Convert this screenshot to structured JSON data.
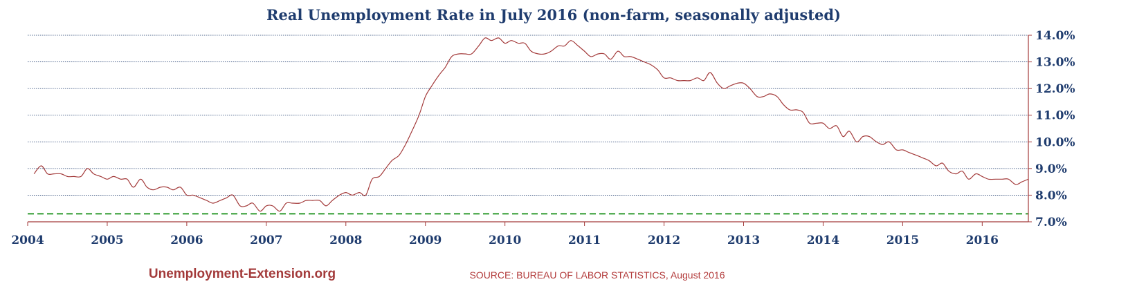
{
  "chart_data": {
    "type": "line",
    "title": "Real Unemployment Rate in July 2016 (non-farm, seasonally adjusted)",
    "xlabel": "",
    "ylabel": "",
    "ylim": [
      7.0,
      14.0
    ],
    "xlim": [
      2004,
      2016.58
    ],
    "y_ticks": [
      "7.0%",
      "8.0%",
      "9.0%",
      "10.0%",
      "11.0%",
      "12.0%",
      "13.0%",
      "14.0%"
    ],
    "y_axis_position": "right",
    "x_ticks": [
      "2004",
      "2005",
      "2006",
      "2007",
      "2008",
      "2009",
      "2010",
      "2011",
      "2012",
      "2013",
      "2014",
      "2015",
      "2016"
    ],
    "grid": "horizontal dotted",
    "colors": {
      "series": "#a33a3a",
      "reference": "#2e9a2e",
      "text": "#1f3c6e",
      "grid": "#1f3c6e"
    },
    "series": [
      {
        "x": [
          2004.08,
          2004.17,
          2004.25,
          2004.33,
          2004.42,
          2004.5,
          2004.58,
          2004.67,
          2004.75,
          2004.83,
          2004.92,
          2005.0,
          2005.08,
          2005.17,
          2005.25,
          2005.33,
          2005.42,
          2005.5,
          2005.58,
          2005.67,
          2005.75,
          2005.83,
          2005.92,
          2006.0,
          2006.08,
          2006.17,
          2006.25,
          2006.33,
          2006.42,
          2006.5,
          2006.58,
          2006.67,
          2006.75,
          2006.83,
          2006.92,
          2007.0,
          2007.08,
          2007.17,
          2007.25,
          2007.33,
          2007.42,
          2007.5,
          2007.58,
          2007.67,
          2007.75,
          2007.83,
          2007.92,
          2008.0,
          2008.08,
          2008.17,
          2008.25,
          2008.33,
          2008.42,
          2008.5,
          2008.58,
          2008.67,
          2008.75,
          2008.83,
          2008.92,
          2009.0,
          2009.08,
          2009.17,
          2009.25,
          2009.33,
          2009.42,
          2009.5,
          2009.58,
          2009.67,
          2009.75,
          2009.83,
          2009.92,
          2010.0,
          2010.08,
          2010.17,
          2010.25,
          2010.33,
          2010.42,
          2010.5,
          2010.58,
          2010.67,
          2010.75,
          2010.83,
          2010.92,
          2011.0,
          2011.08,
          2011.17,
          2011.25,
          2011.33,
          2011.42,
          2011.5,
          2011.58,
          2011.67,
          2011.75,
          2011.83,
          2011.92,
          2012.0,
          2012.08,
          2012.17,
          2012.25,
          2012.33,
          2012.42,
          2012.5,
          2012.58,
          2012.67,
          2012.75,
          2012.83,
          2012.92,
          2013.0,
          2013.08,
          2013.17,
          2013.25,
          2013.33,
          2013.42,
          2013.5,
          2013.58,
          2013.67,
          2013.75,
          2013.83,
          2013.92,
          2014.0,
          2014.08,
          2014.17,
          2014.25,
          2014.33,
          2014.42,
          2014.5,
          2014.58,
          2014.67,
          2014.75,
          2014.83,
          2014.92,
          2015.0,
          2015.08,
          2015.17,
          2015.25,
          2015.33,
          2015.42,
          2015.5,
          2015.58,
          2015.67,
          2015.75,
          2015.83,
          2015.92,
          2016.0,
          2016.08,
          2016.17,
          2016.25,
          2016.33,
          2016.42,
          2016.5,
          2016.58
        ],
        "values": [
          8.8,
          9.1,
          8.8,
          8.8,
          8.8,
          8.7,
          8.7,
          8.7,
          9.0,
          8.8,
          8.7,
          8.6,
          8.7,
          8.6,
          8.6,
          8.3,
          8.6,
          8.3,
          8.2,
          8.3,
          8.3,
          8.2,
          8.3,
          8.0,
          8.0,
          7.9,
          7.8,
          7.7,
          7.8,
          7.9,
          8.0,
          7.6,
          7.6,
          7.7,
          7.4,
          7.6,
          7.6,
          7.4,
          7.7,
          7.7,
          7.7,
          7.8,
          7.8,
          7.8,
          7.6,
          7.8,
          8.0,
          8.1,
          8.0,
          8.1,
          8.0,
          8.6,
          8.7,
          9.0,
          9.3,
          9.5,
          9.9,
          10.4,
          11.0,
          11.7,
          12.1,
          12.5,
          12.8,
          13.2,
          13.3,
          13.3,
          13.3,
          13.6,
          13.9,
          13.8,
          13.9,
          13.7,
          13.8,
          13.7,
          13.7,
          13.4,
          13.3,
          13.3,
          13.4,
          13.6,
          13.6,
          13.8,
          13.6,
          13.4,
          13.2,
          13.3,
          13.3,
          13.1,
          13.4,
          13.2,
          13.2,
          13.1,
          13.0,
          12.9,
          12.7,
          12.4,
          12.4,
          12.3,
          12.3,
          12.3,
          12.4,
          12.3,
          12.6,
          12.2,
          12.0,
          12.1,
          12.2,
          12.2,
          12.0,
          11.7,
          11.7,
          11.8,
          11.7,
          11.4,
          11.2,
          11.2,
          11.1,
          10.7,
          10.7,
          10.7,
          10.5,
          10.6,
          10.2,
          10.4,
          10.0,
          10.2,
          10.2,
          10.0,
          9.9,
          10.0,
          9.7,
          9.7,
          9.6,
          9.5,
          9.4,
          9.3,
          9.1,
          9.2,
          8.9,
          8.8,
          8.9,
          8.6,
          8.8,
          8.7,
          8.6,
          8.6,
          8.6,
          8.6,
          8.4,
          8.5,
          8.6
        ]
      }
    ],
    "reference_line": 7.3,
    "annotations": [
      "Unemployment-Extension.org",
      "SOURCE: BUREAU OF LABOR STATISTICS, August 2016"
    ]
  }
}
